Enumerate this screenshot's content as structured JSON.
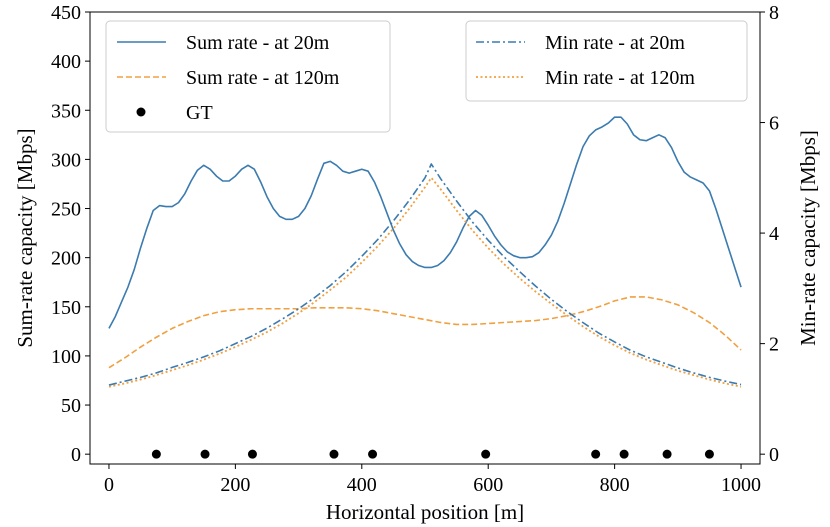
{
  "chart_data": {
    "type": "line",
    "title": "",
    "xlabel": "Horizontal position [m]",
    "ylabel_left": "Sum-rate capacity [Mbps]",
    "ylabel_right": "Min-rate capacity [Mbps]",
    "xlim": [
      -30,
      1030
    ],
    "ylim_left": [
      -10,
      450
    ],
    "ylim_right": [
      -0.1778,
      8
    ],
    "xticks": [
      0,
      200,
      400,
      600,
      800,
      1000
    ],
    "xtick_labels": [
      "0",
      "200",
      "400",
      "600",
      "800",
      "1000"
    ],
    "yticks_left": [
      0,
      50,
      100,
      150,
      200,
      250,
      300,
      350,
      400,
      450
    ],
    "ytick_labels_left": [
      "0",
      "50",
      "100",
      "150",
      "200",
      "250",
      "300",
      "350",
      "400",
      "450"
    ],
    "yticks_right": [
      0,
      2,
      4,
      6,
      8
    ],
    "ytick_labels_right": [
      "0",
      "2",
      "4",
      "6",
      "8"
    ],
    "grid": false,
    "legend_left_placement": "top-left",
    "legend_right_placement": "top-right",
    "colors": {
      "blue": "#3b7bb0",
      "orange": "#f0a040"
    },
    "series": [
      {
        "name": "Sum rate - at 20m",
        "axis": "left",
        "style": "solid",
        "color": "#3b7bb0",
        "x": [
          0,
          10,
          20,
          30,
          40,
          50,
          60,
          70,
          80,
          90,
          100,
          110,
          120,
          130,
          140,
          150,
          160,
          170,
          180,
          190,
          200,
          210,
          220,
          230,
          240,
          250,
          260,
          270,
          280,
          290,
          300,
          310,
          320,
          330,
          340,
          350,
          360,
          370,
          380,
          390,
          400,
          410,
          420,
          430,
          440,
          450,
          460,
          470,
          480,
          490,
          500,
          510,
          520,
          530,
          540,
          550,
          560,
          570,
          580,
          590,
          600,
          610,
          620,
          630,
          640,
          650,
          660,
          670,
          680,
          690,
          700,
          710,
          720,
          730,
          740,
          750,
          760,
          770,
          780,
          790,
          800,
          810,
          820,
          830,
          840,
          850,
          860,
          870,
          880,
          890,
          900,
          910,
          920,
          930,
          940,
          950,
          960,
          970,
          980,
          990,
          1000
        ],
        "values": [
          128,
          140,
          155,
          170,
          188,
          210,
          230,
          248,
          253,
          252,
          252,
          256,
          265,
          278,
          289,
          294,
          290,
          283,
          278,
          278,
          283,
          290,
          294,
          290,
          277,
          262,
          250,
          242,
          239,
          239,
          242,
          250,
          263,
          280,
          296,
          298,
          294,
          288,
          286,
          288,
          290,
          288,
          277,
          262,
          245,
          228,
          214,
          203,
          196,
          192,
          190,
          190,
          192,
          197,
          205,
          216,
          230,
          242,
          248,
          243,
          233,
          222,
          213,
          206,
          202,
          200,
          200,
          201,
          205,
          213,
          223,
          237,
          255,
          275,
          295,
          313,
          324,
          330,
          333,
          337,
          343,
          343,
          336,
          325,
          320,
          319,
          322,
          325,
          322,
          312,
          298,
          287,
          282,
          279,
          276,
          268,
          250,
          230,
          210,
          190,
          170
        ]
      },
      {
        "name": "Sum rate - at 120m",
        "axis": "left",
        "style": "dashed",
        "color": "#f0a040",
        "x": [
          0,
          25,
          50,
          75,
          100,
          125,
          150,
          175,
          200,
          225,
          250,
          275,
          300,
          325,
          350,
          375,
          400,
          425,
          450,
          475,
          500,
          525,
          550,
          575,
          600,
          625,
          650,
          675,
          700,
          725,
          750,
          775,
          800,
          825,
          850,
          875,
          900,
          925,
          950,
          975,
          1000
        ],
        "values": [
          88,
          98,
          109,
          119,
          128,
          135,
          141,
          145,
          147,
          148,
          148,
          148,
          148,
          149,
          149,
          149,
          148,
          146,
          143,
          140,
          137,
          134,
          132,
          132,
          133,
          134,
          135,
          136,
          138,
          141,
          145,
          150,
          156,
          160,
          160,
          157,
          152,
          144,
          134,
          121,
          106
        ]
      },
      {
        "name": "Min rate - at 20m",
        "axis": "right",
        "style": "dashdot",
        "color": "#3b7bb0",
        "x": [
          0,
          25,
          50,
          75,
          100,
          125,
          150,
          175,
          200,
          225,
          250,
          275,
          300,
          325,
          350,
          375,
          400,
          425,
          450,
          475,
          500,
          510,
          525,
          550,
          575,
          600,
          625,
          650,
          675,
          700,
          725,
          750,
          775,
          800,
          825,
          850,
          875,
          900,
          925,
          950,
          975,
          1000
        ],
        "values": [
          1.25,
          1.32,
          1.39,
          1.47,
          1.57,
          1.66,
          1.76,
          1.87,
          2.0,
          2.13,
          2.28,
          2.45,
          2.63,
          2.83,
          3.05,
          3.3,
          3.58,
          3.88,
          4.22,
          4.59,
          5.0,
          5.25,
          4.98,
          4.58,
          4.2,
          3.87,
          3.57,
          3.3,
          3.04,
          2.8,
          2.58,
          2.38,
          2.19,
          2.03,
          1.88,
          1.76,
          1.66,
          1.56,
          1.47,
          1.39,
          1.32,
          1.26
        ]
      },
      {
        "name": "Min rate - at 120m",
        "axis": "right",
        "style": "dotted",
        "color": "#f0a040",
        "x": [
          0,
          25,
          50,
          75,
          100,
          125,
          150,
          175,
          200,
          225,
          250,
          275,
          300,
          325,
          350,
          375,
          400,
          425,
          450,
          475,
          500,
          510,
          525,
          550,
          575,
          600,
          625,
          650,
          675,
          700,
          725,
          750,
          775,
          800,
          825,
          850,
          875,
          900,
          925,
          950,
          975,
          1000
        ],
        "values": [
          1.22,
          1.28,
          1.35,
          1.43,
          1.52,
          1.61,
          1.71,
          1.82,
          1.94,
          2.07,
          2.21,
          2.37,
          2.55,
          2.75,
          2.97,
          3.2,
          3.47,
          3.76,
          4.08,
          4.44,
          4.83,
          5.0,
          4.79,
          4.41,
          4.05,
          3.73,
          3.44,
          3.18,
          2.94,
          2.72,
          2.51,
          2.31,
          2.13,
          1.97,
          1.83,
          1.71,
          1.61,
          1.51,
          1.43,
          1.35,
          1.28,
          1.22
        ]
      },
      {
        "name": "GT",
        "axis": "left",
        "style": "markers",
        "color": "#000000",
        "x": [
          75,
          152,
          227,
          356,
          417,
          596,
          770,
          815,
          883,
          950
        ],
        "values": [
          0,
          0,
          0,
          0,
          0,
          0,
          0,
          0,
          0,
          0
        ]
      }
    ]
  }
}
